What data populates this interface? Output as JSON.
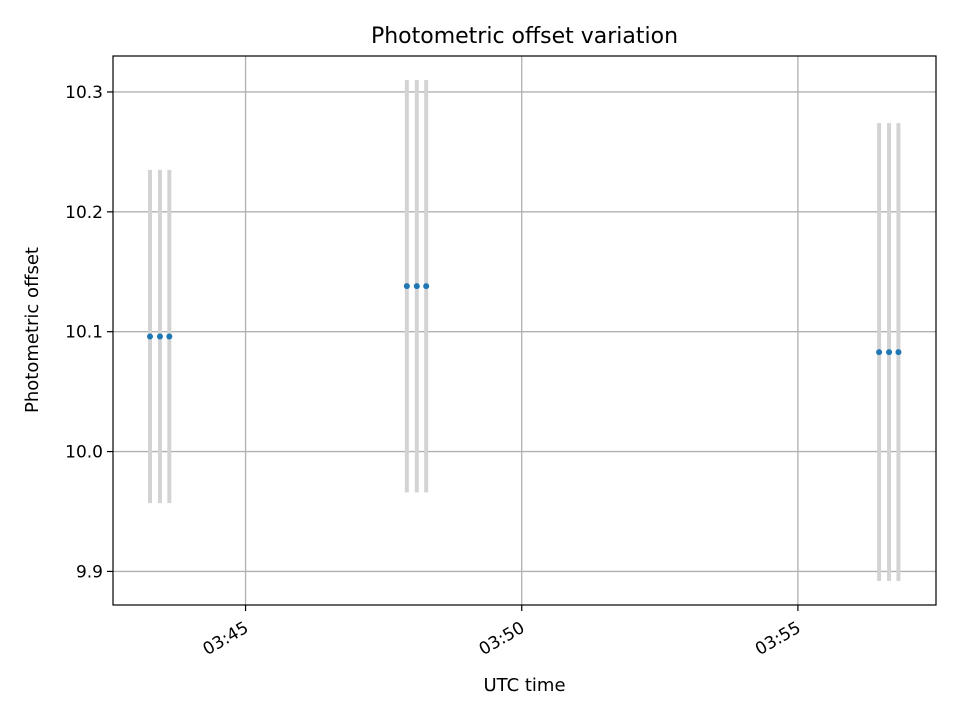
{
  "chart_data": {
    "type": "scatter",
    "title": "Photometric offset variation",
    "xlabel": "UTC time",
    "ylabel": "Photometric offset",
    "x_ticks": [
      "03:45",
      "03:50",
      "03:55"
    ],
    "y_ticks": [
      "9.9",
      "10.0",
      "10.1",
      "10.2",
      "10.3"
    ],
    "x_unit": "minutes after 03:00 UTC",
    "xlim": [
      42.6,
      57.5
    ],
    "ylim": [
      9.872,
      10.33
    ],
    "grid": true,
    "points": [
      {
        "x": 43.27,
        "y": 10.096,
        "err": 0.139
      },
      {
        "x": 43.45,
        "y": 10.096,
        "err": 0.139
      },
      {
        "x": 43.62,
        "y": 10.096,
        "err": 0.139
      },
      {
        "x": 47.92,
        "y": 10.138,
        "err": 0.172
      },
      {
        "x": 48.1,
        "y": 10.138,
        "err": 0.172
      },
      {
        "x": 48.27,
        "y": 10.138,
        "err": 0.172
      },
      {
        "x": 56.47,
        "y": 10.083,
        "err": 0.191
      },
      {
        "x": 56.65,
        "y": 10.083,
        "err": 0.191
      },
      {
        "x": 56.82,
        "y": 10.083,
        "err": 0.191
      }
    ],
    "colors": {
      "point": "#1f77b4",
      "errorbar": "#d3d3d3",
      "grid": "#b0b0b0",
      "axes": "#000000"
    }
  }
}
